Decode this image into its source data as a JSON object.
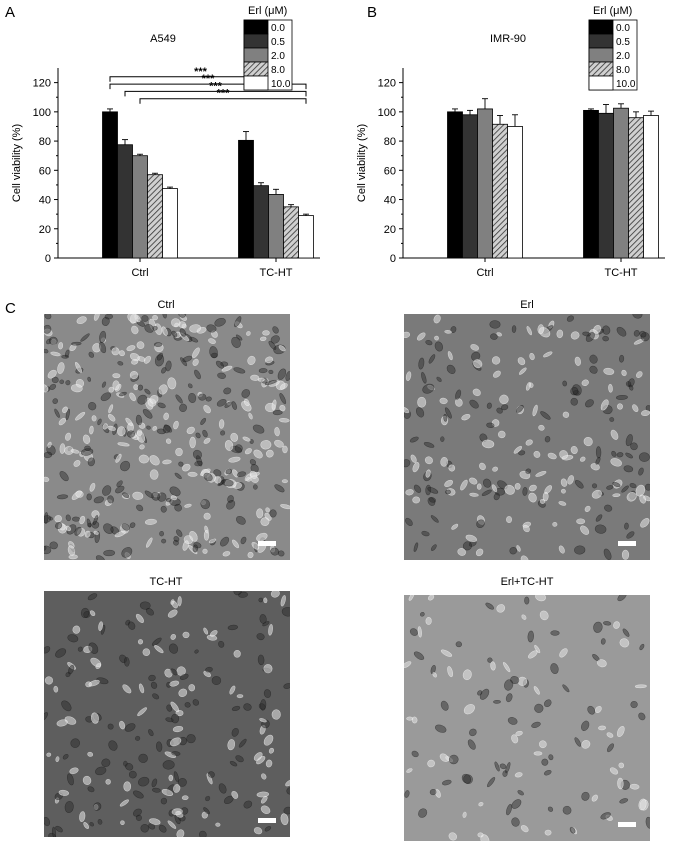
{
  "panels": {
    "a": "A",
    "b": "B",
    "c": "C"
  },
  "chart_data": [
    {
      "type": "bar",
      "title": "A549",
      "ylabel": "Cell viability (%)",
      "xlabel": "",
      "ylim": [
        0,
        130
      ],
      "yticks": [
        0,
        20,
        40,
        60,
        80,
        100,
        120
      ],
      "categories": [
        "Ctrl",
        "TC-HT"
      ],
      "legend_title": "Erl (μM)",
      "legend_position": "top-right",
      "series": [
        {
          "name": "0.0",
          "values": [
            100,
            80.5
          ],
          "errors": [
            2,
            6
          ],
          "color": "#000000",
          "pattern": "solid"
        },
        {
          "name": "0.5",
          "values": [
            77.5,
            49.5
          ],
          "errors": [
            3.5,
            2
          ],
          "color": "#333333",
          "pattern": "solid"
        },
        {
          "name": "2.0",
          "values": [
            70,
            43.5
          ],
          "errors": [
            1,
            3.5
          ],
          "color": "#808080",
          "pattern": "solid"
        },
        {
          "name": "8.0",
          "values": [
            57,
            35
          ],
          "errors": [
            1,
            1.5
          ],
          "color": "#808080",
          "pattern": "hatch"
        },
        {
          "name": "10.0",
          "values": [
            47.5,
            29
          ],
          "errors": [
            1,
            1
          ],
          "color": "#ffffff",
          "pattern": "solid"
        }
      ],
      "significance": [
        {
          "label": "***",
          "from_series": 0,
          "to_series": 3
        },
        {
          "label": "***",
          "from_series": 0,
          "to_series": 4
        },
        {
          "label": "***",
          "from_series": 1,
          "to_series": 4
        },
        {
          "label": "***",
          "from_series": 2,
          "to_series": 4
        }
      ]
    },
    {
      "type": "bar",
      "title": "IMR-90",
      "ylabel": "Cell viability (%)",
      "xlabel": "",
      "ylim": [
        0,
        130
      ],
      "yticks": [
        0,
        20,
        40,
        60,
        80,
        100,
        120
      ],
      "categories": [
        "Ctrl",
        "TC-HT"
      ],
      "legend_title": "Erl (μM)",
      "legend_position": "top-right",
      "series": [
        {
          "name": "0.0",
          "values": [
            100,
            101
          ],
          "errors": [
            2,
            1
          ],
          "color": "#000000",
          "pattern": "solid"
        },
        {
          "name": "0.5",
          "values": [
            98,
            99
          ],
          "errors": [
            3,
            6
          ],
          "color": "#333333",
          "pattern": "solid"
        },
        {
          "name": "2.0",
          "values": [
            102,
            102.5
          ],
          "errors": [
            7,
            3
          ],
          "color": "#808080",
          "pattern": "solid"
        },
        {
          "name": "8.0",
          "values": [
            91.5,
            96
          ],
          "errors": [
            6,
            4
          ],
          "color": "#808080",
          "pattern": "hatch"
        },
        {
          "name": "10.0",
          "values": [
            90,
            97.5
          ],
          "errors": [
            8,
            3
          ],
          "color": "#ffffff",
          "pattern": "solid"
        }
      ]
    }
  ],
  "micrographs": [
    {
      "title": "Ctrl",
      "tone": "#8a8a8a",
      "cell_density": 0.95
    },
    {
      "title": "Erl",
      "tone": "#7a7a7a",
      "cell_density": 0.55
    },
    {
      "title": "TC-HT",
      "tone": "#5e5e5e",
      "cell_density": 0.5
    },
    {
      "title": "Erl+TC-HT",
      "tone": "#9a9a9a",
      "cell_density": 0.3
    }
  ]
}
